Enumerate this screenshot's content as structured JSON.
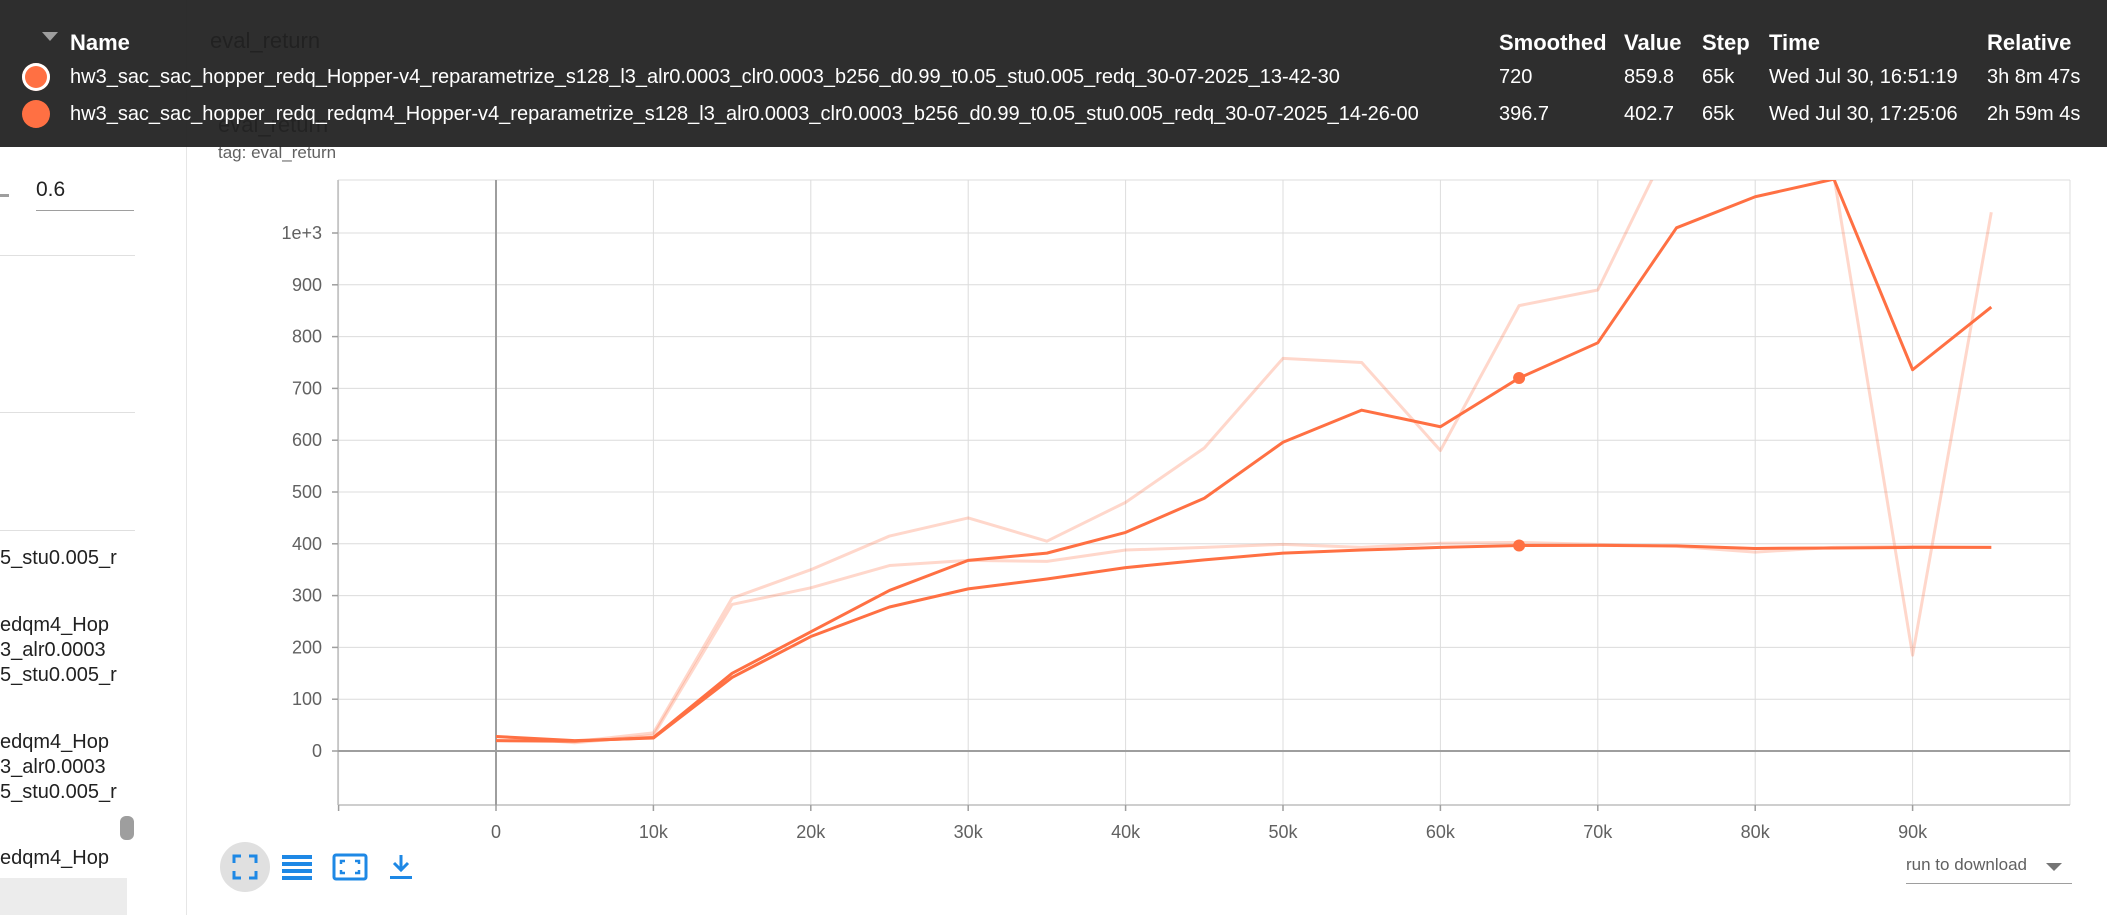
{
  "tooltip": {
    "headers": {
      "name": "Name",
      "smoothed": "Smoothed",
      "value": "Value",
      "step": "Step",
      "time": "Time",
      "relative": "Relative"
    },
    "background": "#212121",
    "rows": [
      {
        "name": "hw3_sac_sac_hopper_redq_Hopper-v4_reparametrize_s128_l3_alr0.0003_clr0.0003_b256_d0.99_t0.05_stu0.005_redq_30-07-2025_13-42-30",
        "smoothed": "720",
        "value": "859.8",
        "step": "65k",
        "time": "Wed Jul 30, 16:51:19",
        "relative": "3h 8m 47s",
        "color": "#ff7043",
        "outlined": true
      },
      {
        "name": "hw3_sac_sac_hopper_redq_redqm4_Hopper-v4_reparametrize_s128_l3_alr0.0003_clr0.0003_b256_d0.99_t0.05_stu0.005_redq_30-07-2025_14-26-00",
        "smoothed": "396.7",
        "value": "402.7",
        "step": "65k",
        "time": "Wed Jul 30, 17:25:06",
        "relative": "2h 59m 4s",
        "color": "#ff7043",
        "outlined": false
      }
    ]
  },
  "sidebar": {
    "smoothing_value": "0.6",
    "run_fragments": [
      "5_stu0.005_r",
      "edqm4_Hop",
      "3_alr0.0003",
      "5_stu0.005_r",
      "edqm4_Hop",
      "3_alr0.0003",
      "5_stu0.005_r",
      "edqm4_Hop"
    ]
  },
  "card": {
    "title": "eval_return",
    "chart_title": "eval_return",
    "tag": "tag: eval_return"
  },
  "toolbar": {
    "fullscreen_icon": "fullscreen-icon",
    "log_icon": "log-scale-icon",
    "fit_icon": "fit-domain-icon",
    "download_icon": "download-icon",
    "run_select_label": "run to download",
    "accent": "#1e88e5"
  },
  "chart_data": {
    "type": "line",
    "title": "eval_return",
    "xlabel": "",
    "ylabel": "",
    "xlim": [
      -10000,
      100000
    ],
    "ylim": [
      -100,
      1100
    ],
    "x_ticks": [
      0,
      10000,
      20000,
      30000,
      40000,
      50000,
      60000,
      70000,
      80000,
      90000
    ],
    "x_tick_labels": [
      "0",
      "10k",
      "20k",
      "30k",
      "40k",
      "50k",
      "60k",
      "70k",
      "80k",
      "90k"
    ],
    "y_ticks": [
      0,
      100,
      200,
      300,
      400,
      500,
      600,
      700,
      800,
      900,
      1000
    ],
    "y_tick_labels": [
      "0",
      "100",
      "200",
      "300",
      "400",
      "500",
      "600",
      "700",
      "800",
      "900",
      "1e+3"
    ],
    "grid": true,
    "hover_step": 65000,
    "series": [
      {
        "color": "#ff7043",
        "x": [
          0,
          5000,
          10000,
          15000,
          20000,
          25000,
          30000,
          35000,
          40000,
          45000,
          50000,
          55000,
          60000,
          65000,
          70000,
          75000,
          80000,
          85000,
          90000,
          95000
        ],
        "raw": [
          20,
          18,
          35,
          295,
          350,
          415,
          450,
          405,
          480,
          585,
          758,
          750,
          580,
          859.8,
          890,
          1200,
          1150,
          1110,
          185,
          1040
        ],
        "smoothed": [
          20,
          19,
          26,
          150,
          230,
          310,
          368,
          382,
          422,
          488,
          596,
          658,
          626,
          720,
          788,
          1010,
          1070,
          1104,
          736,
          857
        ]
      },
      {
        "color": "#ff7043",
        "x": [
          0,
          5000,
          10000,
          15000,
          20000,
          25000,
          30000,
          35000,
          40000,
          45000,
          50000,
          55000,
          60000,
          65000,
          70000,
          75000,
          80000,
          85000,
          90000,
          95000
        ],
        "raw": [
          28,
          16,
          30,
          283,
          315,
          358,
          368,
          366,
          388,
          393,
          399,
          393,
          401,
          402.7,
          399,
          395,
          384,
          393,
          395,
          393
        ],
        "smoothed": [
          28,
          20,
          25,
          142,
          221,
          278,
          313,
          332,
          354,
          369,
          382,
          388,
          393,
          396.7,
          397,
          396,
          391,
          392,
          393,
          393
        ]
      }
    ]
  }
}
